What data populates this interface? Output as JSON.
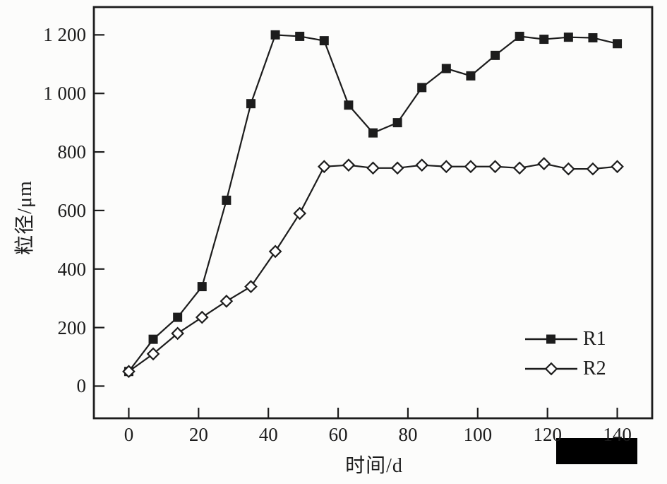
{
  "figure": {
    "background": "#fcfcfb",
    "ink_color": "#1c1c1c"
  },
  "chart_data": {
    "type": "line",
    "title": "",
    "xlabel": "时间/d",
    "ylabel": "粒径/μm",
    "xlim": [
      -10,
      150
    ],
    "ylim": [
      -110,
      1295
    ],
    "grid": false,
    "legend_position": "inside-lower-right",
    "x_ticks": [
      0,
      20,
      40,
      60,
      80,
      100,
      120,
      140
    ],
    "x_tick_labels": [
      "0",
      "20",
      "40",
      "60",
      "80",
      "100",
      "120",
      "140"
    ],
    "y_ticks": [
      0,
      200,
      400,
      600,
      800,
      1000,
      1200
    ],
    "y_tick_labels": [
      "0",
      "200",
      "400",
      "600",
      "800",
      "1 000",
      "1 200"
    ],
    "x": [
      0,
      7,
      14,
      21,
      28,
      35,
      42,
      49,
      56,
      63,
      70,
      77,
      84,
      91,
      98,
      105,
      112,
      119,
      126,
      133,
      140
    ],
    "series": [
      {
        "name": "R1",
        "marker": "filled-square",
        "values": [
          50,
          160,
          235,
          340,
          635,
          965,
          1200,
          1195,
          1180,
          960,
          865,
          900,
          1020,
          1085,
          1060,
          1130,
          1195,
          1185,
          1192,
          1190,
          1170
        ]
      },
      {
        "name": "R2",
        "marker": "open-diamond",
        "values": [
          50,
          110,
          180,
          235,
          290,
          340,
          460,
          590,
          750,
          755,
          745,
          745,
          755,
          750,
          750,
          750,
          745,
          760,
          742,
          742,
          750
        ]
      }
    ]
  },
  "redaction": {
    "present": true
  }
}
